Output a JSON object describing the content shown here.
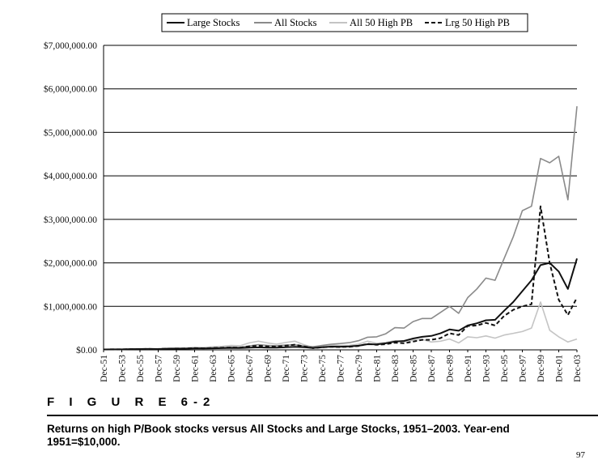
{
  "figure": {
    "label": "F I G U R E   6-2",
    "caption": "Returns on high P/Book stocks versus All Stocks and Large Stocks, 1951–2003. Year-end 1951=$10,000.",
    "page_number": "97"
  },
  "colors": {
    "large_stocks": "#111111",
    "all_stocks": "#8a8a8a",
    "all_50_high_pb": "#c4c4c4",
    "lrg_50_high_pb": "#111111",
    "grid": "#000000"
  },
  "chart_data": {
    "type": "line",
    "title": "",
    "xlabel": "",
    "ylabel": "",
    "ylim": [
      0,
      7000000
    ],
    "yticks": [
      0,
      1000000,
      2000000,
      3000000,
      4000000,
      5000000,
      6000000,
      7000000
    ],
    "ytick_labels": [
      "$0.00",
      "$1,000,000.00",
      "$2,000,000.00",
      "$3,000,000.00",
      "$4,000,000.00",
      "$5,000,000.00",
      "$6,000,000.00",
      "$7,000,000.00"
    ],
    "x": [
      1951,
      1952,
      1953,
      1954,
      1955,
      1956,
      1957,
      1958,
      1959,
      1960,
      1961,
      1962,
      1963,
      1964,
      1965,
      1966,
      1967,
      1968,
      1969,
      1970,
      1971,
      1972,
      1973,
      1974,
      1975,
      1976,
      1977,
      1978,
      1979,
      1980,
      1981,
      1982,
      1983,
      1984,
      1985,
      1986,
      1987,
      1988,
      1989,
      1990,
      1991,
      1992,
      1993,
      1994,
      1995,
      1996,
      1997,
      1998,
      1999,
      2000,
      2001,
      2002,
      2003
    ],
    "xtick_labels": [
      "Dec-51",
      "Dec-53",
      "Dec-55",
      "Dec-57",
      "Dec-59",
      "Dec-61",
      "Dec-63",
      "Dec-65",
      "Dec-67",
      "Dec-69",
      "Dec-71",
      "Dec-73",
      "Dec-75",
      "Dec-77",
      "Dec-79",
      "Dec-81",
      "Dec-83",
      "Dec-85",
      "Dec-87",
      "Dec-89",
      "Dec-91",
      "Dec-93",
      "Dec-95",
      "Dec-97",
      "Dec-99",
      "Dec-01",
      "Dec-03"
    ],
    "legend_position": "top",
    "series": [
      {
        "name": "Large Stocks",
        "key": "large_stocks",
        "dash": "solid",
        "width": 2,
        "values": [
          10000,
          11000,
          11500,
          16000,
          19000,
          20000,
          19000,
          26000,
          28000,
          28000,
          34000,
          31000,
          36000,
          40000,
          44000,
          41000,
          50000,
          57000,
          52000,
          53000,
          60000,
          70000,
          60000,
          45000,
          60000,
          75000,
          72000,
          78000,
          95000,
          130000,
          125000,
          150000,
          190000,
          205000,
          260000,
          300000,
          320000,
          380000,
          470000,
          440000,
          560000,
          610000,
          680000,
          690000,
          900000,
          1100000,
          1350000,
          1600000,
          1950000,
          2000000,
          1800000,
          1400000,
          2100000
        ]
      },
      {
        "name": "All Stocks",
        "key": "all_stocks",
        "dash": "solid",
        "width": 1.6,
        "values": [
          10000,
          11000,
          11000,
          17000,
          20000,
          21000,
          19000,
          28000,
          32000,
          32000,
          40000,
          36000,
          44000,
          51000,
          63000,
          60000,
          90000,
          120000,
          100000,
          95000,
          110000,
          115000,
          90000,
          70000,
          100000,
          130000,
          145000,
          165000,
          210000,
          290000,
          300000,
          370000,
          510000,
          500000,
          650000,
          720000,
          720000,
          860000,
          1000000,
          840000,
          1200000,
          1400000,
          1650000,
          1600000,
          2100000,
          2600000,
          3200000,
          3300000,
          4400000,
          4300000,
          4450000,
          3450000,
          5600000
        ]
      },
      {
        "name": "All 50 High PB",
        "key": "all_50_high_pb",
        "dash": "solid",
        "width": 1.6,
        "values": [
          10000,
          11000,
          12000,
          20000,
          24000,
          26000,
          22000,
          35000,
          42000,
          45000,
          60000,
          55000,
          70000,
          80000,
          100000,
          95000,
          160000,
          200000,
          160000,
          130000,
          170000,
          200000,
          120000,
          60000,
          90000,
          110000,
          100000,
          105000,
          130000,
          200000,
          150000,
          170000,
          210000,
          180000,
          220000,
          240000,
          180000,
          200000,
          250000,
          160000,
          300000,
          280000,
          320000,
          270000,
          340000,
          380000,
          420000,
          500000,
          1100000,
          450000,
          300000,
          180000,
          250000
        ]
      },
      {
        "name": "Lrg 50 High PB",
        "key": "lrg_50_high_pb",
        "dash": "dashed",
        "width": 2,
        "values": [
          10000,
          11000,
          11000,
          16000,
          19000,
          21000,
          19000,
          27000,
          30000,
          31000,
          40000,
          36000,
          42000,
          48000,
          55000,
          50000,
          80000,
          95000,
          80000,
          75000,
          95000,
          120000,
          80000,
          40000,
          60000,
          70000,
          65000,
          70000,
          90000,
          140000,
          115000,
          130000,
          165000,
          150000,
          190000,
          230000,
          230000,
          270000,
          380000,
          340000,
          550000,
          560000,
          620000,
          560000,
          780000,
          920000,
          1000000,
          1050000,
          3300000,
          2000000,
          1150000,
          800000,
          1200000
        ]
      }
    ]
  }
}
